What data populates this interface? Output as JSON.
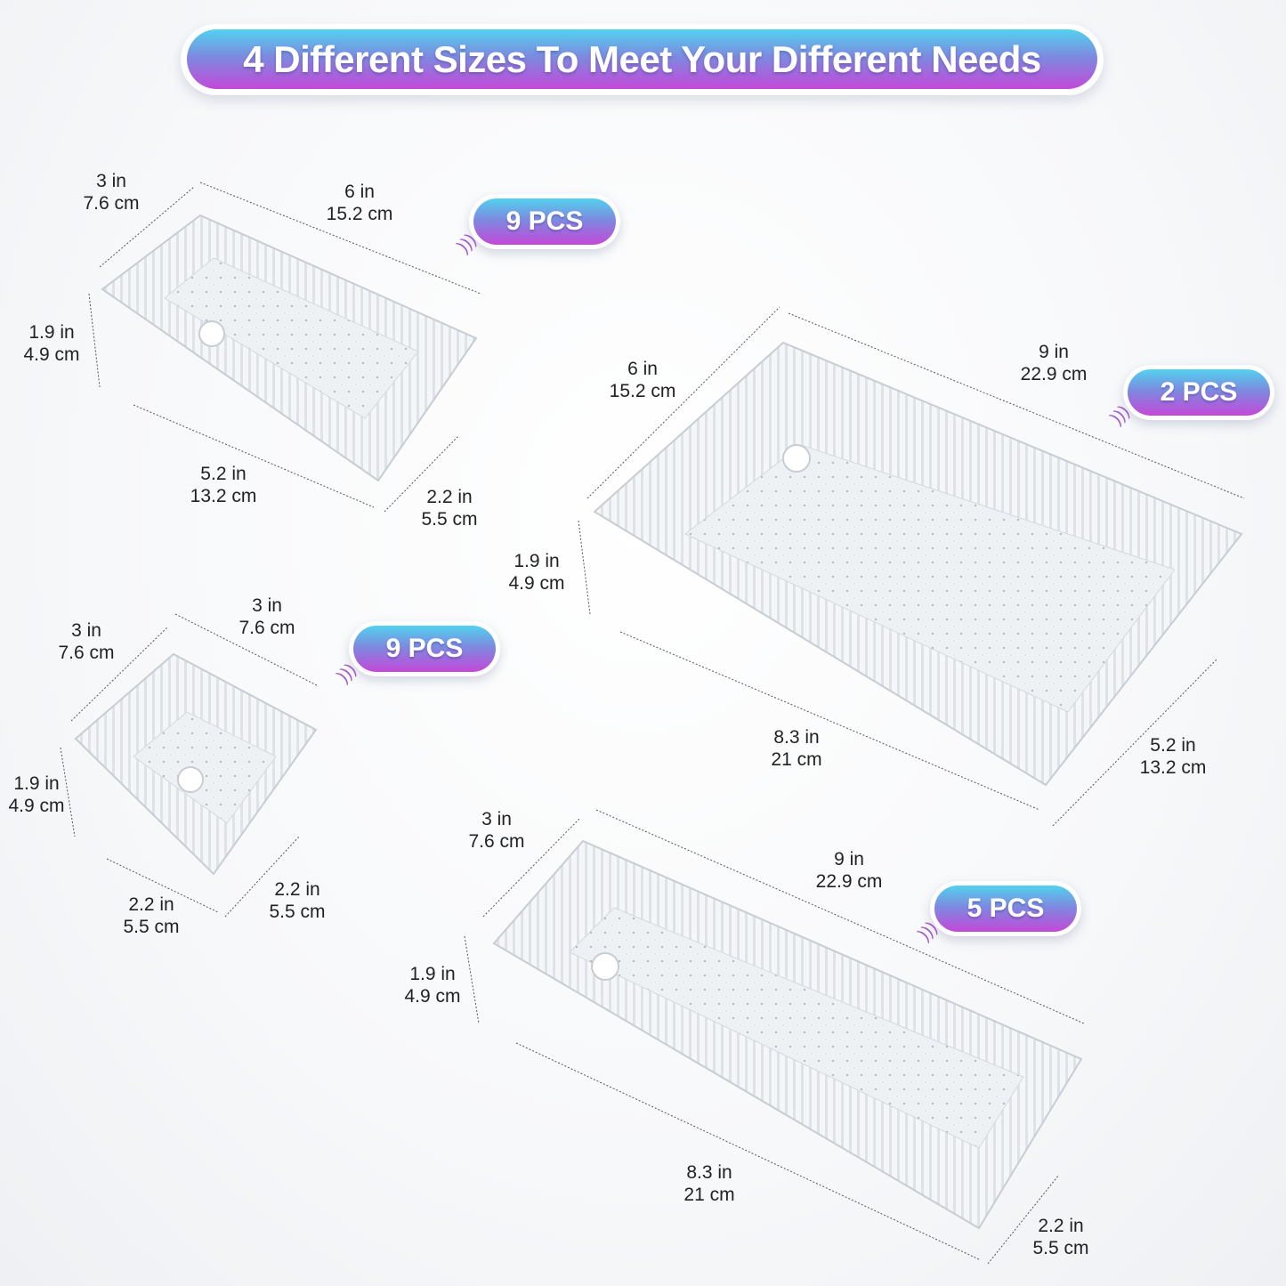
{
  "title": "4 Different Sizes To Meet Your Different Needs",
  "colors": {
    "gradient_top": "#52d2ee",
    "gradient_bottom": "#c448d8",
    "text": "#222222"
  },
  "badges": [
    {
      "label": "9 PCS"
    },
    {
      "label": "2 PCS"
    },
    {
      "label": "9 PCS"
    },
    {
      "label": "5 PCS"
    }
  ],
  "trays": [
    {
      "dims": [
        {
          "in": "3 in",
          "cm": "7.6 cm"
        },
        {
          "in": "6 in",
          "cm": "15.2 cm"
        },
        {
          "in": "1.9 in",
          "cm": "4.9 cm"
        },
        {
          "in": "5.2 in",
          "cm": "13.2 cm"
        },
        {
          "in": "2.2 in",
          "cm": "5.5 cm"
        }
      ]
    },
    {
      "dims": [
        {
          "in": "6 in",
          "cm": "15.2 cm"
        },
        {
          "in": "9 in",
          "cm": "22.9 cm"
        },
        {
          "in": "1.9 in",
          "cm": "4.9 cm"
        },
        {
          "in": "8.3 in",
          "cm": "21 cm"
        },
        {
          "in": "5.2 in",
          "cm": "13.2 cm"
        }
      ]
    },
    {
      "dims": [
        {
          "in": "3 in",
          "cm": "7.6 cm"
        },
        {
          "in": "3 in",
          "cm": "7.6 cm"
        },
        {
          "in": "1.9 in",
          "cm": "4.9 cm"
        },
        {
          "in": "2.2 in",
          "cm": "5.5 cm"
        },
        {
          "in": "2.2 in",
          "cm": "5.5 cm"
        }
      ]
    },
    {
      "dims": [
        {
          "in": "3 in",
          "cm": "7.6 cm"
        },
        {
          "in": "9 in",
          "cm": "22.9 cm"
        },
        {
          "in": "1.9 in",
          "cm": "4.9 cm"
        },
        {
          "in": "8.3 in",
          "cm": "21 cm"
        },
        {
          "in": "2.2 in",
          "cm": "5.5 cm"
        }
      ]
    }
  ]
}
